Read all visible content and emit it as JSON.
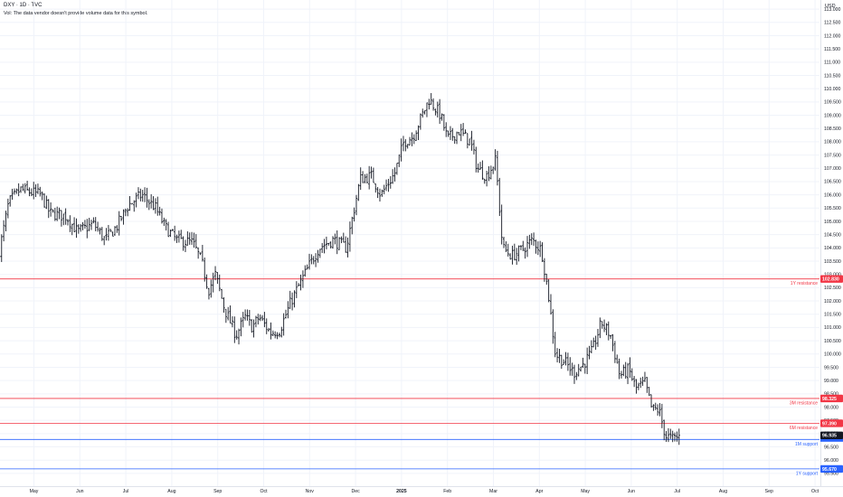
{
  "header": {
    "symbol_line": "DXY · 1D · TVC",
    "volume_note": "Vol: The data vendor doesn't provide volume data for this symbol."
  },
  "price_axis": {
    "currency": "USD"
  },
  "chart_data": {
    "type": "ohlc",
    "title": "",
    "ylim": [
      95.2,
      113.5
    ],
    "y_ticks": [
      95.5,
      96.0,
      96.5,
      97.0,
      97.5,
      98.0,
      98.5,
      99.0,
      99.5,
      100.0,
      100.5,
      101.0,
      101.5,
      102.0,
      102.5,
      103.0,
      103.5,
      104.0,
      104.5,
      105.0,
      105.5,
      106.0,
      106.5,
      107.0,
      107.5,
      108.0,
      108.5,
      109.0,
      109.5,
      110.0,
      110.5,
      111.0,
      111.5,
      112.0,
      112.5,
      113.0
    ],
    "y_tick_labels": [
      "95.500",
      "96.000",
      "96.500",
      "97.000",
      "97.500",
      "98.000",
      "98.500",
      "99.000",
      "99.500",
      "100.000",
      "100.500",
      "101.000",
      "101.500",
      "102.000",
      "102.500",
      "103.000",
      "103.500",
      "104.000",
      "104.500",
      "105.000",
      "105.500",
      "106.000",
      "106.500",
      "107.000",
      "107.500",
      "108.000",
      "108.500",
      "109.000",
      "109.500",
      "110.000",
      "110.500",
      "111.000",
      "111.500",
      "112.000",
      "112.500",
      "113.000"
    ],
    "x_labels": [
      {
        "label": "May",
        "month": 0,
        "bold": false
      },
      {
        "label": "Jun",
        "month": 1,
        "bold": false
      },
      {
        "label": "Jul",
        "month": 2,
        "bold": false
      },
      {
        "label": "Aug",
        "month": 3,
        "bold": false
      },
      {
        "label": "Sep",
        "month": 4,
        "bold": false
      },
      {
        "label": "Oct",
        "month": 5,
        "bold": false
      },
      {
        "label": "Nov",
        "month": 6,
        "bold": false
      },
      {
        "label": "Dec",
        "month": 7,
        "bold": false
      },
      {
        "label": "2025",
        "month": 8,
        "bold": true
      },
      {
        "label": "Feb",
        "month": 9,
        "bold": false
      },
      {
        "label": "Mar",
        "month": 10,
        "bold": false
      },
      {
        "label": "Apr",
        "month": 11,
        "bold": false
      },
      {
        "label": "May",
        "month": 12,
        "bold": false
      },
      {
        "label": "Jun",
        "month": 13,
        "bold": false
      },
      {
        "label": "Jul",
        "month": 14,
        "bold": false
      },
      {
        "label": "Aug",
        "month": 15,
        "bold": false
      },
      {
        "label": "Sep",
        "month": 16,
        "bold": false
      },
      {
        "label": "Oct",
        "month": 17,
        "bold": false
      },
      {
        "label": "Nov",
        "month": 18,
        "bold": false
      }
    ],
    "x_range_months": [
      -0.75,
      18.1
    ],
    "levels": [
      {
        "name": "1Y resistance",
        "price": 102.83,
        "price_label": "102.830",
        "color": "#f23645"
      },
      {
        "name": "3M resistance",
        "price": 98.325,
        "price_label": "98.325",
        "color": "#f23645"
      },
      {
        "name": "6M resistance",
        "price": 97.39,
        "price_label": "97.390",
        "color": "#f23645"
      },
      {
        "name": "1M support",
        "price": 96.78,
        "price_label": "",
        "color": "#2962ff"
      },
      {
        "name": "1Y support",
        "price": 95.67,
        "price_label": "95.670",
        "color": "#2962ff"
      }
    ],
    "last_price": {
      "price": 96.935,
      "label": "96.935",
      "color": "#131722"
    },
    "series": [
      {
        "name": "DXY",
        "keypoints": [
          [
            -0.75,
            103.9
          ],
          [
            -0.55,
            105.7
          ],
          [
            -0.3,
            106.2
          ],
          [
            0.15,
            106.0
          ],
          [
            0.35,
            105.3
          ],
          [
            0.7,
            105.2
          ],
          [
            0.95,
            104.6
          ],
          [
            1.3,
            104.9
          ],
          [
            1.55,
            104.3
          ],
          [
            1.8,
            104.8
          ],
          [
            2.05,
            105.6
          ],
          [
            2.35,
            106.0
          ],
          [
            2.65,
            105.5
          ],
          [
            2.85,
            104.8
          ],
          [
            3.1,
            104.3
          ],
          [
            3.45,
            104.2
          ],
          [
            3.65,
            103.5
          ],
          [
            3.8,
            102.4
          ],
          [
            3.95,
            103.0
          ],
          [
            4.15,
            101.7
          ],
          [
            4.4,
            100.7
          ],
          [
            4.6,
            101.4
          ],
          [
            4.75,
            101.0
          ],
          [
            4.9,
            101.4
          ],
          [
            5.15,
            100.8
          ],
          [
            5.35,
            100.9
          ],
          [
            5.6,
            102.0
          ],
          [
            5.95,
            103.2
          ],
          [
            6.2,
            104.0
          ],
          [
            6.5,
            104.3
          ],
          [
            6.8,
            104.0
          ],
          [
            6.95,
            105.3
          ],
          [
            7.1,
            106.6
          ],
          [
            7.35,
            106.7
          ],
          [
            7.55,
            106.0
          ],
          [
            7.85,
            106.8
          ],
          [
            8.05,
            108.0
          ],
          [
            8.25,
            108.2
          ],
          [
            8.45,
            109.0
          ],
          [
            8.6,
            109.6
          ],
          [
            8.85,
            109.0
          ],
          [
            9.0,
            108.1
          ],
          [
            9.25,
            108.4
          ],
          [
            9.5,
            108.0
          ],
          [
            9.65,
            107.0
          ],
          [
            9.85,
            106.7
          ],
          [
            10.05,
            107.3
          ],
          [
            10.2,
            104.0
          ],
          [
            10.4,
            103.7
          ],
          [
            10.6,
            103.9
          ],
          [
            10.85,
            104.3
          ],
          [
            11.05,
            103.9
          ],
          [
            11.2,
            102.2
          ],
          [
            11.35,
            100.0
          ],
          [
            11.55,
            99.7
          ],
          [
            11.75,
            99.3
          ],
          [
            11.95,
            99.6
          ],
          [
            12.15,
            100.1
          ],
          [
            12.35,
            101.2
          ],
          [
            12.55,
            100.7
          ],
          [
            12.75,
            99.2
          ],
          [
            12.95,
            99.4
          ],
          [
            13.1,
            98.7
          ],
          [
            13.3,
            98.9
          ],
          [
            13.45,
            97.9
          ],
          [
            13.6,
            97.9
          ],
          [
            13.75,
            96.9
          ],
          [
            13.9,
            96.8
          ],
          [
            14.05,
            96.9
          ]
        ]
      }
    ]
  }
}
